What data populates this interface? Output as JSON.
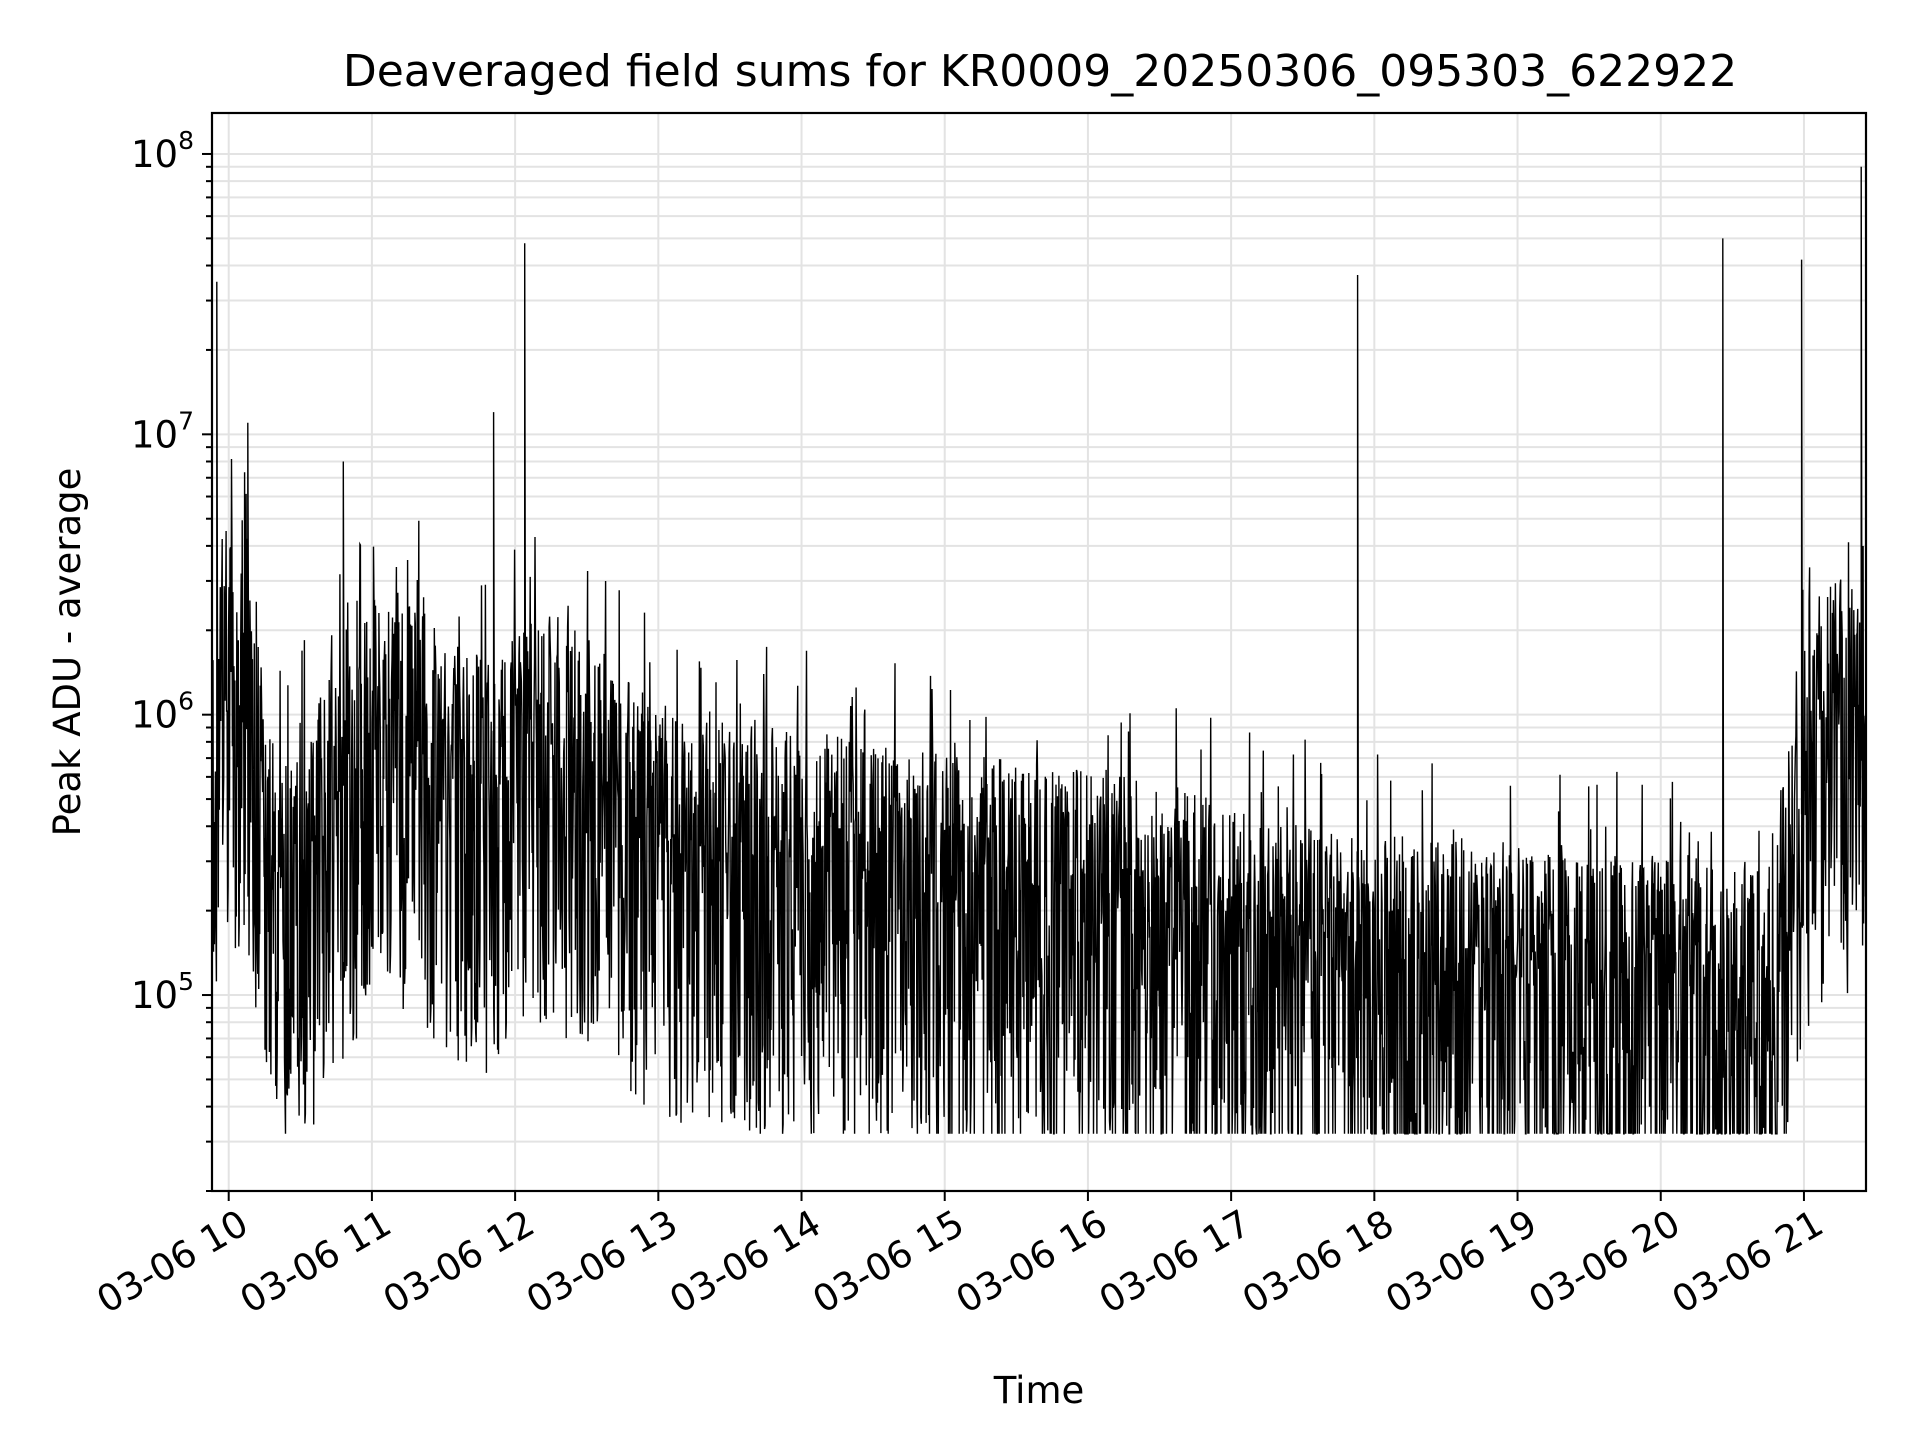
{
  "chart_data": {
    "type": "line",
    "title": "Deaveraged field sums for KR0009_20250306_095303_622922",
    "xlabel": "Time",
    "ylabel": "Peak ADU - average",
    "yscale": "log",
    "grid": true,
    "xlim": [
      "2025-03-06 09:53",
      "2025-03-06 21:26"
    ],
    "ylim": [
      20000,
      140000000
    ],
    "x_ticks": [
      "03-06 10",
      "03-06 11",
      "03-06 12",
      "03-06 13",
      "03-06 14",
      "03-06 15",
      "03-06 16",
      "03-06 17",
      "03-06 18",
      "03-06 19",
      "03-06 20",
      "03-06 21"
    ],
    "y_ticks": [
      {
        "base": "10",
        "exp": "5",
        "value": 100000
      },
      {
        "base": "10",
        "exp": "6",
        "value": 1000000
      },
      {
        "base": "10",
        "exp": "7",
        "value": 10000000
      },
      {
        "base": "10",
        "exp": "8",
        "value": 100000000
      }
    ],
    "series": [
      {
        "color": "#000000",
        "x": [
          "2025-03-06 09:53",
          "2025-03-06 09:55",
          "2025-03-06 09:57",
          "2025-03-06 10:00",
          "2025-03-06 10:06",
          "2025-03-06 10:08",
          "2025-03-06 10:10",
          "2025-03-06 10:13",
          "2025-03-06 10:16",
          "2025-03-06 10:20",
          "2025-03-06 10:25",
          "2025-03-06 10:30",
          "2025-03-06 10:35",
          "2025-03-06 10:40",
          "2025-03-06 10:45",
          "2025-03-06 10:48",
          "2025-03-06 10:50",
          "2025-03-06 10:55",
          "2025-03-06 11:00",
          "2025-03-06 11:10",
          "2025-03-06 11:20",
          "2025-03-06 11:30",
          "2025-03-06 11:40",
          "2025-03-06 11:50",
          "2025-03-06 11:51",
          "2025-03-06 11:55",
          "2025-03-06 12:03",
          "2025-03-06 12:04",
          "2025-03-06 12:10",
          "2025-03-06 12:30",
          "2025-03-06 13:00",
          "2025-03-06 13:30",
          "2025-03-06 14:00",
          "2025-03-06 14:30",
          "2025-03-06 15:00",
          "2025-03-06 15:30",
          "2025-03-06 16:00",
          "2025-03-06 16:30",
          "2025-03-06 17:00",
          "2025-03-06 17:30",
          "2025-03-06 17:52",
          "2025-03-06 17:53",
          "2025-03-06 18:00",
          "2025-03-06 18:30",
          "2025-03-06 19:00",
          "2025-03-06 19:30",
          "2025-03-06 20:00",
          "2025-03-06 20:25",
          "2025-03-06 20:26",
          "2025-03-06 20:35",
          "2025-03-06 20:45",
          "2025-03-06 20:58",
          "2025-03-06 20:59",
          "2025-03-06 21:05",
          "2025-03-06 21:15",
          "2025-03-06 21:23",
          "2025-03-06 21:24",
          "2025-03-06 21:26"
        ],
        "y": [
          600000,
          35000000,
          1500000,
          1400000,
          1500000,
          11000000,
          1200000,
          600000,
          300000,
          250000,
          300000,
          350000,
          300000,
          400000,
          500000,
          8000000,
          600000,
          700000,
          800000,
          900000,
          800000,
          600000,
          550000,
          500000,
          12000000,
          600000,
          700000,
          48000000,
          750000,
          600000,
          350000,
          300000,
          280000,
          250000,
          230000,
          220000,
          200000,
          180000,
          150000,
          130000,
          120000,
          37000000,
          120000,
          120000,
          110000,
          100000,
          100000,
          100000,
          50000000,
          100000,
          100000,
          400000,
          42000000,
          800000,
          1000000,
          800000,
          90000000,
          700000
        ]
      }
    ]
  }
}
